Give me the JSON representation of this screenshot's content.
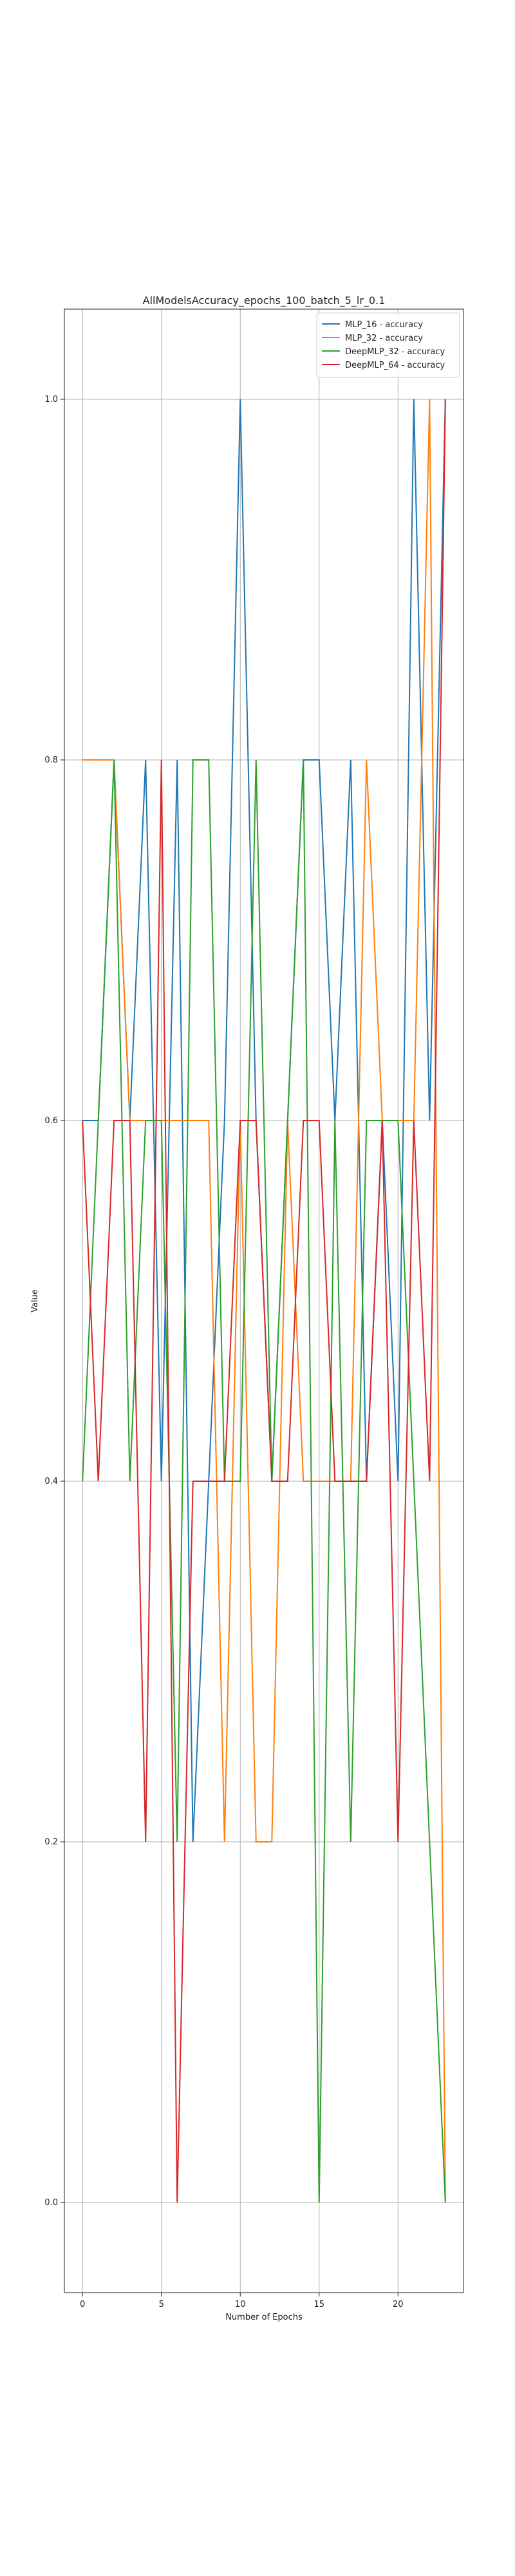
{
  "chart_data": {
    "type": "line",
    "title": "AllModelsAccuracy_epochs_100_batch_5_lr_0.1",
    "xlabel": "Number of Epochs",
    "ylabel": "Value",
    "xlim": [
      -1.15,
      24.15
    ],
    "ylim": [
      -0.05,
      1.05
    ],
    "xticks": [
      0,
      5,
      10,
      15,
      20
    ],
    "xtick_labels": [
      "0",
      "5",
      "10",
      "15",
      "20"
    ],
    "yticks": [
      0.0,
      0.2,
      0.4,
      0.6,
      0.8,
      1.0
    ],
    "ytick_labels": [
      "0.0",
      "0.2",
      "0.4",
      "0.6",
      "0.8",
      "1.0"
    ],
    "grid": true,
    "legend_position": "top-right",
    "x": [
      0,
      1,
      2,
      3,
      4,
      5,
      6,
      7,
      8,
      9,
      10,
      11,
      12,
      13,
      14,
      15,
      16,
      17,
      18,
      19,
      20,
      21,
      22,
      23
    ],
    "series": [
      {
        "name": "MLP_16 - accuracy",
        "color": "#1f77b4",
        "values": [
          0.6,
          0.6,
          0.8,
          0.6,
          0.8,
          0.4,
          0.8,
          0.2,
          0.4,
          0.6,
          1.0,
          0.6,
          0.4,
          0.6,
          0.8,
          0.8,
          0.6,
          0.8,
          0.4,
          0.6,
          0.4,
          1.0,
          0.6,
          1.0
        ]
      },
      {
        "name": "MLP_32 - accuracy",
        "color": "#ff7f0e",
        "values": [
          0.8,
          0.8,
          0.8,
          0.6,
          0.6,
          0.6,
          0.6,
          0.6,
          0.6,
          0.2,
          0.6,
          0.2,
          0.2,
          0.6,
          0.4,
          0.4,
          0.4,
          0.4,
          0.8,
          0.6,
          0.6,
          0.6,
          1.0,
          0.0
        ]
      },
      {
        "name": "DeepMLP_32 - accuracy",
        "color": "#2ca02c",
        "values": [
          0.4,
          0.6,
          0.8,
          0.4,
          0.6,
          0.6,
          0.2,
          0.8,
          0.8,
          0.4,
          0.4,
          0.8,
          0.4,
          0.6,
          0.8,
          0.0,
          0.6,
          0.2,
          0.6,
          0.6,
          0.6,
          0.4,
          0.2,
          0.0
        ]
      },
      {
        "name": "DeepMLP_64 - accuracy",
        "color": "#d62728",
        "values": [
          0.6,
          0.4,
          0.6,
          0.6,
          0.2,
          0.8,
          0.0,
          0.4,
          0.4,
          0.4,
          0.6,
          0.6,
          0.4,
          0.4,
          0.6,
          0.6,
          0.4,
          0.4,
          0.4,
          0.6,
          0.2,
          0.6,
          0.4,
          1.0
        ]
      }
    ]
  }
}
